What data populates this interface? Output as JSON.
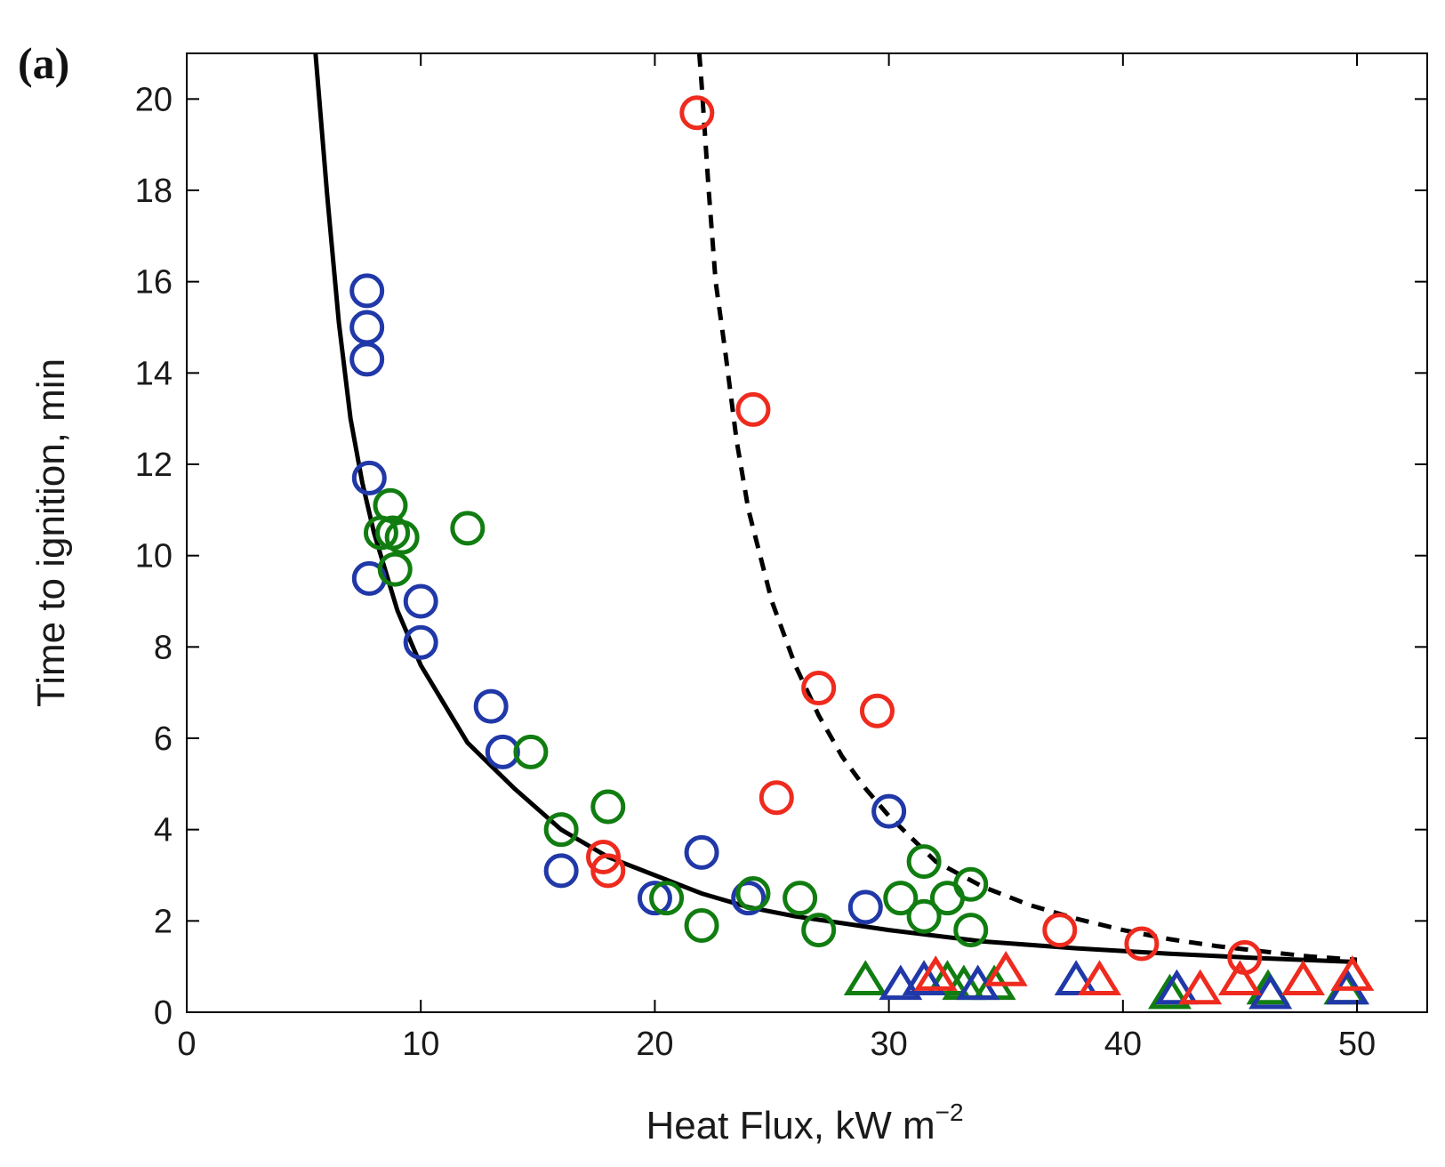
{
  "chart_data": {
    "type": "scatter",
    "panel_label": "(a)",
    "xlabel": "Heat Flux, kW m",
    "xlabel_exponent": "−2",
    "ylabel": "Time to ignition, min",
    "xlim": [
      0,
      53
    ],
    "ylim": [
      0,
      21
    ],
    "xticks": [
      0,
      10,
      20,
      30,
      40,
      50
    ],
    "yticks": [
      0,
      2,
      4,
      6,
      8,
      10,
      12,
      14,
      16,
      18,
      20
    ],
    "grid": false,
    "colors": {
      "red": "#ee2b1e",
      "green": "#117d11",
      "blue": "#2038a8",
      "line": "#000000"
    },
    "series": [
      {
        "name": "blue circles",
        "marker": "circle",
        "color": "blue",
        "points": [
          [
            7.7,
            15.8
          ],
          [
            7.7,
            15.0
          ],
          [
            7.7,
            14.3
          ],
          [
            7.8,
            11.7
          ],
          [
            7.8,
            9.5
          ],
          [
            10,
            9.0
          ],
          [
            10,
            8.1
          ],
          [
            13,
            6.7
          ],
          [
            13.5,
            5.7
          ],
          [
            16,
            3.1
          ],
          [
            20,
            2.5
          ],
          [
            22,
            3.5
          ],
          [
            24,
            2.5
          ],
          [
            29,
            2.3
          ],
          [
            30,
            4.4
          ]
        ]
      },
      {
        "name": "green circles",
        "marker": "circle",
        "color": "green",
        "points": [
          [
            8.7,
            11.1
          ],
          [
            8.3,
            10.5
          ],
          [
            8.8,
            10.5
          ],
          [
            9.2,
            10.4
          ],
          [
            8.9,
            9.7
          ],
          [
            12,
            10.6
          ],
          [
            14.7,
            5.7
          ],
          [
            16,
            4.0
          ],
          [
            18,
            4.5
          ],
          [
            20.5,
            2.5
          ],
          [
            22,
            1.9
          ],
          [
            24.2,
            2.6
          ],
          [
            26.2,
            2.5
          ],
          [
            27,
            1.8
          ],
          [
            30.5,
            2.5
          ],
          [
            31.5,
            3.3
          ],
          [
            31.5,
            2.1
          ],
          [
            32.5,
            2.5
          ],
          [
            33.5,
            2.8
          ],
          [
            33.5,
            1.8
          ]
        ]
      },
      {
        "name": "red circles",
        "marker": "circle",
        "color": "red",
        "points": [
          [
            21.8,
            19.7
          ],
          [
            24.2,
            13.2
          ],
          [
            25.2,
            4.7
          ],
          [
            27,
            7.1
          ],
          [
            29.5,
            6.6
          ],
          [
            17.8,
            3.4
          ],
          [
            18,
            3.1
          ],
          [
            37.3,
            1.8
          ],
          [
            40.8,
            1.5
          ],
          [
            45.2,
            1.2
          ]
        ]
      },
      {
        "name": "green triangles",
        "marker": "triangle",
        "color": "green",
        "points": [
          [
            29,
            0.7
          ],
          [
            32.5,
            0.7
          ],
          [
            33.2,
            0.6
          ],
          [
            34.5,
            0.6
          ],
          [
            42,
            0.4
          ],
          [
            46.2,
            0.5
          ],
          [
            49.5,
            0.5
          ]
        ]
      },
      {
        "name": "blue triangles",
        "marker": "triangle",
        "color": "blue",
        "points": [
          [
            30.5,
            0.6
          ],
          [
            31.5,
            0.7
          ],
          [
            33.8,
            0.6
          ],
          [
            38,
            0.7
          ],
          [
            42.3,
            0.5
          ],
          [
            46.3,
            0.4
          ],
          [
            49.6,
            0.5
          ]
        ]
      },
      {
        "name": "red triangles",
        "marker": "triangle",
        "color": "red",
        "points": [
          [
            32,
            0.8
          ],
          [
            35,
            0.9
          ],
          [
            39,
            0.7
          ],
          [
            43.3,
            0.5
          ],
          [
            45,
            0.7
          ],
          [
            47.7,
            0.7
          ],
          [
            49.8,
            0.8
          ]
        ]
      }
    ],
    "curves": [
      {
        "name": "solid fit",
        "style": "solid",
        "color": "line",
        "points": [
          [
            5.5,
            21
          ],
          [
            6,
            17.9
          ],
          [
            6.5,
            15.1
          ],
          [
            7,
            13.0
          ],
          [
            7.5,
            11.6
          ],
          [
            8,
            10.5
          ],
          [
            9,
            8.8
          ],
          [
            10,
            7.6
          ],
          [
            12,
            5.9
          ],
          [
            14,
            4.9
          ],
          [
            16,
            4.0
          ],
          [
            18,
            3.4
          ],
          [
            20,
            3.0
          ],
          [
            22,
            2.6
          ],
          [
            24,
            2.3
          ],
          [
            26,
            2.1
          ],
          [
            28,
            1.95
          ],
          [
            30,
            1.8
          ],
          [
            34,
            1.55
          ],
          [
            38,
            1.4
          ],
          [
            42,
            1.28
          ],
          [
            46,
            1.18
          ],
          [
            50,
            1.1
          ]
        ]
      },
      {
        "name": "dashed fit",
        "style": "dashed",
        "color": "line",
        "points": [
          [
            21.9,
            21
          ],
          [
            22,
            20.3
          ],
          [
            22.3,
            18
          ],
          [
            22.6,
            16
          ],
          [
            23,
            14.5
          ],
          [
            23.5,
            12.5
          ],
          [
            24,
            11
          ],
          [
            25,
            9
          ],
          [
            26,
            7.6
          ],
          [
            27,
            6.5
          ],
          [
            28,
            5.6
          ],
          [
            29,
            4.9
          ],
          [
            30,
            4.3
          ],
          [
            31,
            3.8
          ],
          [
            32,
            3.3
          ],
          [
            34,
            2.75
          ],
          [
            36,
            2.35
          ],
          [
            38,
            2.05
          ],
          [
            40,
            1.8
          ],
          [
            42,
            1.6
          ],
          [
            44,
            1.45
          ],
          [
            46,
            1.33
          ],
          [
            48,
            1.22
          ],
          [
            50,
            1.15
          ]
        ]
      }
    ]
  }
}
